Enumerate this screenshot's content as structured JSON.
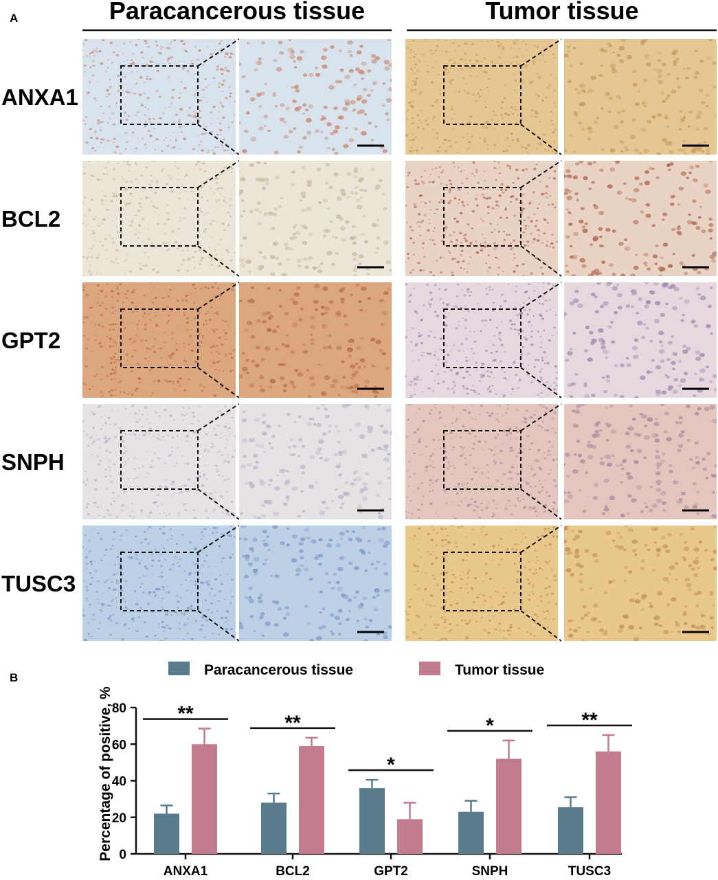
{
  "panel_a": {
    "label": "A",
    "group_titles": [
      "Paracancerous tissue",
      "Tumor tissue"
    ],
    "rows": [
      "ANXA1",
      "BCL2",
      "GPT2",
      "SNPH",
      "TUSC3"
    ],
    "tissue_colors": {
      "para": {
        "ANXA1": [
          "#d8e3ee",
          "#c98a73"
        ],
        "BCL2": [
          "#ece6d8",
          "#c9bba0"
        ],
        "GPT2": [
          "#dca77f",
          "#b86f48"
        ],
        "SNPH": [
          "#e7e3e4",
          "#b9b4cc"
        ],
        "TUSC3": [
          "#bcd0e6",
          "#7f98c6"
        ]
      },
      "tumor": {
        "ANXA1": [
          "#e6c792",
          "#c99a62"
        ],
        "BCL2": [
          "#e9d3c4",
          "#b06a52"
        ],
        "GPT2": [
          "#e6d8de",
          "#a58ab0"
        ],
        "SNPH": [
          "#e3c6bd",
          "#b08aa0"
        ],
        "TUSC3": [
          "#e9c88c",
          "#c29257"
        ]
      }
    }
  },
  "panel_b": {
    "label": "B"
  },
  "chart_data": {
    "type": "bar",
    "categories": [
      "ANXA1",
      "BCL2",
      "GPT2",
      "SNPH",
      "TUSC3"
    ],
    "series": [
      {
        "name": "Paracancerous tissue",
        "color": "#587c8b",
        "values": [
          22,
          28,
          36,
          23,
          25.5
        ],
        "errors": [
          4.5,
          5,
          4.5,
          6,
          5.5
        ]
      },
      {
        "name": "Tumor tissue",
        "color": "#c27c8e",
        "values": [
          60,
          59,
          19,
          52,
          56
        ],
        "errors": [
          8.5,
          4.5,
          9,
          10,
          9
        ]
      }
    ],
    "significance": [
      "**",
      "**",
      "*",
      "*",
      "**"
    ],
    "ylabel": "Percentage of positive, %",
    "xlabel": "",
    "ylim": [
      0,
      80
    ],
    "yticks": [
      0,
      20,
      40,
      60,
      80
    ],
    "legend_position": "top"
  }
}
